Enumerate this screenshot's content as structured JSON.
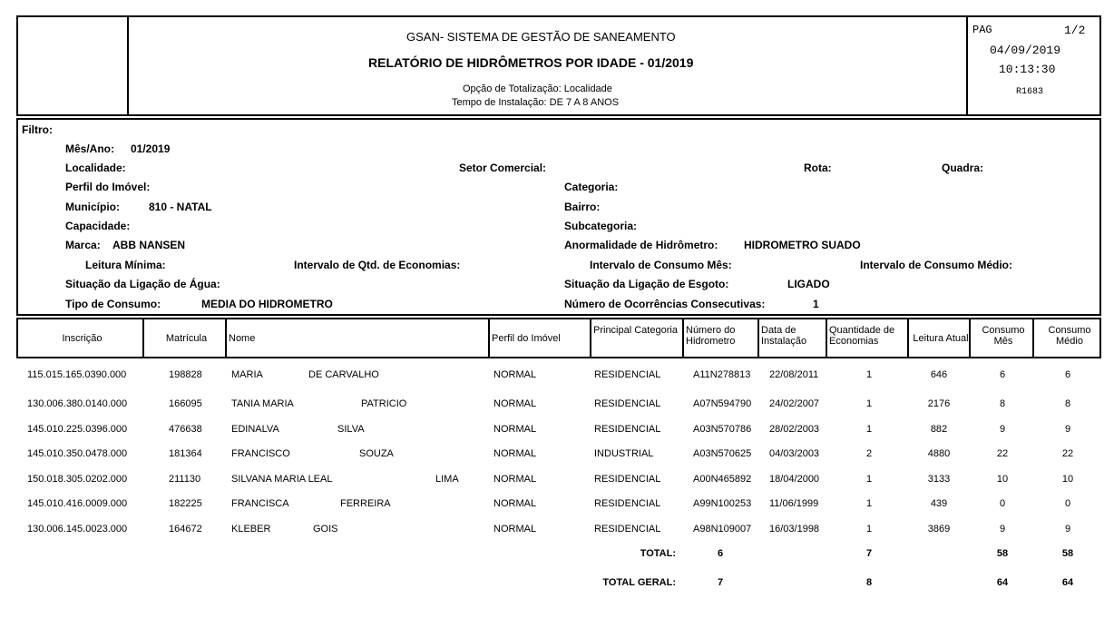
{
  "header": {
    "system": "GSAN- SISTEMA DE GESTÃO DE SANEAMENTO",
    "title": "RELATÓRIO DE HIDRÔMETROS POR IDADE - 01/2019",
    "totalization": "Opção de Totalização: Localidade",
    "install_time": "Tempo de Instalação: DE 7 A 8 ANOS",
    "page_label": "PAG",
    "page": "1/2",
    "date": "04/09/2019",
    "time": "10:13:30",
    "report_code": "R1683"
  },
  "filter": {
    "title": "Filtro:",
    "mes_ano_label": "Mês/Ano:",
    "mes_ano": "01/2019",
    "localidade_label": "Localidade:",
    "setor_label": "Setor Comercial:",
    "rota_label": "Rota:",
    "quadra_label": "Quadra:",
    "perfil_label": "Perfil do Imóvel:",
    "categoria_label": "Categoria:",
    "municipio_label": "Município:",
    "municipio": "810 - NATAL",
    "bairro_label": "Bairro:",
    "capacidade_label": "Capacidade:",
    "subcategoria_label": "Subcategoria:",
    "marca_label": "Marca:",
    "marca": "ABB NANSEN",
    "anormalidade_label": "Anormalidade de Hidrômetro:",
    "anormalidade": "HIDROMETRO SUADO",
    "leitura_min_label": "Leitura Mínima:",
    "qtd_econ_label": "Intervalo de Qtd. de Economias:",
    "consumo_mes_label": "Intervalo de Consumo Mês:",
    "consumo_medio_label": "Intervalo de Consumo Médio:",
    "sit_agua_label": "Situação da Ligação de Água:",
    "sit_esgoto_label": "Situação da Ligação de Esgoto:",
    "sit_esgoto": "LIGADO",
    "tipo_consumo_label": "Tipo de Consumo:",
    "tipo_consumo": "MEDIA DO HIDROMETRO",
    "ocorrencias_label": "Número de Ocorrências Consecutivas:",
    "ocorrencias": "1"
  },
  "table": {
    "headers": [
      "Inscrição",
      "Matrícula",
      "Nome",
      "Perfil do Imóvel",
      "Principal Categoria",
      "Número do Hidrometro",
      "Data de Instalação",
      "Quantidade de Economias",
      "Leitura Atual",
      "Consumo Mês",
      "Consumo Médio"
    ],
    "rows": [
      [
        "115.015.165.0390.000",
        "198828",
        "MARIA",
        "DE CARVALHO",
        "NORMAL",
        "RESIDENCIAL",
        "A11N278813",
        "22/08/2011",
        "1",
        "646",
        "6",
        "6"
      ],
      [
        "130.006.380.0140.000",
        "166095",
        "TANIA MARIA",
        "PATRICIO",
        "NORMAL",
        "RESIDENCIAL",
        "A07N594790",
        "24/02/2007",
        "1",
        "2176",
        "8",
        "8"
      ],
      [
        "145.010.225.0396.000",
        "476638",
        "EDINALVA",
        "SILVA",
        "NORMAL",
        "RESIDENCIAL",
        "A03N570786",
        "28/02/2003",
        "1",
        "882",
        "9",
        "9"
      ],
      [
        "145.010.350.0478.000",
        "181364",
        "FRANCISCO",
        "SOUZA",
        "NORMAL",
        "INDUSTRIAL",
        "A03N570625",
        "04/03/2003",
        "2",
        "4880",
        "22",
        "22"
      ],
      [
        "150.018.305.0202.000",
        "211130",
        "SILVANA MARIA LEAL",
        "LIMA",
        "NORMAL",
        "RESIDENCIAL",
        "A00N465892",
        "18/04/2000",
        "1",
        "3133",
        "10",
        "10"
      ],
      [
        "145.010.416.0009.000",
        "182225",
        "FRANCISCA",
        "FERREIRA",
        "NORMAL",
        "RESIDENCIAL",
        "A99N100253",
        "11/06/1999",
        "1",
        "439",
        "0",
        "0"
      ],
      [
        "130.006.145.0023.000",
        "164672",
        "KLEBER",
        "GOIS",
        "NORMAL",
        "RESIDENCIAL",
        "A98N109007",
        "16/03/1998",
        "1",
        "3869",
        "9",
        "9"
      ]
    ],
    "total": {
      "label": "TOTAL:",
      "hidrometros": "6",
      "economias": "7",
      "consumo_mes": "58",
      "consumo_medio": "58"
    },
    "total_geral": {
      "label": "TOTAL GERAL:",
      "hidrometros": "7",
      "economias": "8",
      "consumo_mes": "64",
      "consumo_medio": "64"
    }
  }
}
